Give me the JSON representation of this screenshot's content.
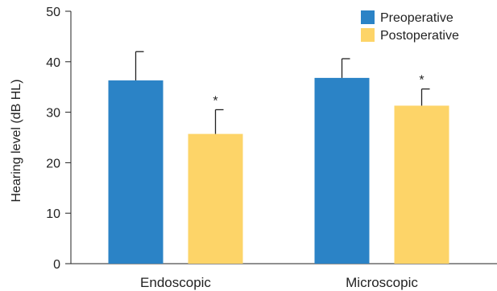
{
  "chart_data": {
    "type": "bar",
    "ylabel": "Hearing level (dB HL)",
    "ylim": [
      0,
      50
    ],
    "yticks": [
      "0",
      "10",
      "20",
      "30",
      "40",
      "50"
    ],
    "categories": [
      "Endoscopic",
      "Microscopic"
    ],
    "series": [
      {
        "name": "Preoperative",
        "color": "#2b83c6",
        "values": [
          36.3,
          36.8
        ],
        "errors": [
          5.7,
          3.8
        ],
        "significance": [
          "",
          ""
        ]
      },
      {
        "name": "Postoperative",
        "color": "#fdd468",
        "values": [
          25.7,
          31.3
        ],
        "errors": [
          4.8,
          3.3
        ],
        "significance": [
          "*",
          "*"
        ]
      }
    ],
    "legend_position": "top-right",
    "grid": false
  }
}
